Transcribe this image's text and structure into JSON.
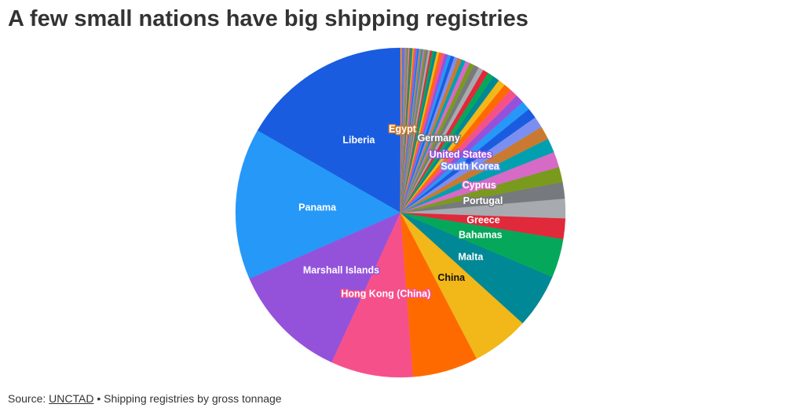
{
  "chart_data": {
    "type": "pie",
    "title": "A few small nations have big shipping registries",
    "source_label": "Source:",
    "source_link": "UNCTAD",
    "note": "• Shipping registries by gross tonnage",
    "categories": [
      "Liberia",
      "Panama",
      "Marshall Islands",
      "Hong Kong (China)",
      null,
      "China",
      "Malta",
      "Bahamas",
      "Greece",
      null,
      "Portugal",
      null,
      "Cyprus",
      null,
      null,
      "South Korea",
      null,
      null,
      "United States",
      null,
      null,
      null,
      null,
      null,
      null,
      null,
      "Germany",
      null,
      null,
      null,
      null,
      null,
      null,
      null,
      null,
      null,
      null,
      null,
      null,
      null,
      null,
      null,
      null,
      null,
      null,
      null,
      null,
      null,
      null,
      null,
      null,
      null,
      null,
      null,
      null,
      null,
      null,
      null,
      null,
      null,
      null,
      null,
      "Egypt",
      null,
      null,
      null,
      null,
      null,
      null,
      null
    ],
    "values": [
      16.6,
      14.8,
      11.5,
      8.0,
      6.4,
      5.6,
      5.3,
      3.8,
      2.0,
      1.9,
      1.6,
      1.5,
      1.5,
      1.4,
      1.3,
      1.1,
      1.0,
      0.9,
      0.85,
      0.8,
      0.75,
      0.7,
      0.65,
      0.6,
      0.55,
      0.5,
      0.5,
      0.45,
      0.45,
      0.4,
      0.4,
      0.35,
      0.35,
      0.3,
      0.3,
      0.3,
      0.25,
      0.25,
      0.25,
      0.2,
      0.2,
      0.2,
      0.2,
      0.15,
      0.15,
      0.15,
      0.15,
      0.1,
      0.1,
      0.1,
      0.1,
      0.1,
      0.1,
      0.1,
      0.1,
      0.1,
      0.1,
      0.1,
      0.1,
      0.1,
      0.1,
      0.05,
      0.05,
      0.05,
      0.05,
      0.05,
      0.05,
      0.05,
      0.05,
      0.05
    ],
    "palette": [
      "#1a5ce0",
      "#2698f8",
      "#9452db",
      "#f6508b",
      "#ff6a00",
      "#f2b718",
      "#008896",
      "#05a85a",
      "#e0293a",
      "#a7abb0",
      "#76797d",
      "#7a9a1d",
      "#d76ac6",
      "#00a0b0",
      "#c97a30",
      "#7b8ff0"
    ],
    "start_angle": 0,
    "direction": "counterclockwise"
  }
}
